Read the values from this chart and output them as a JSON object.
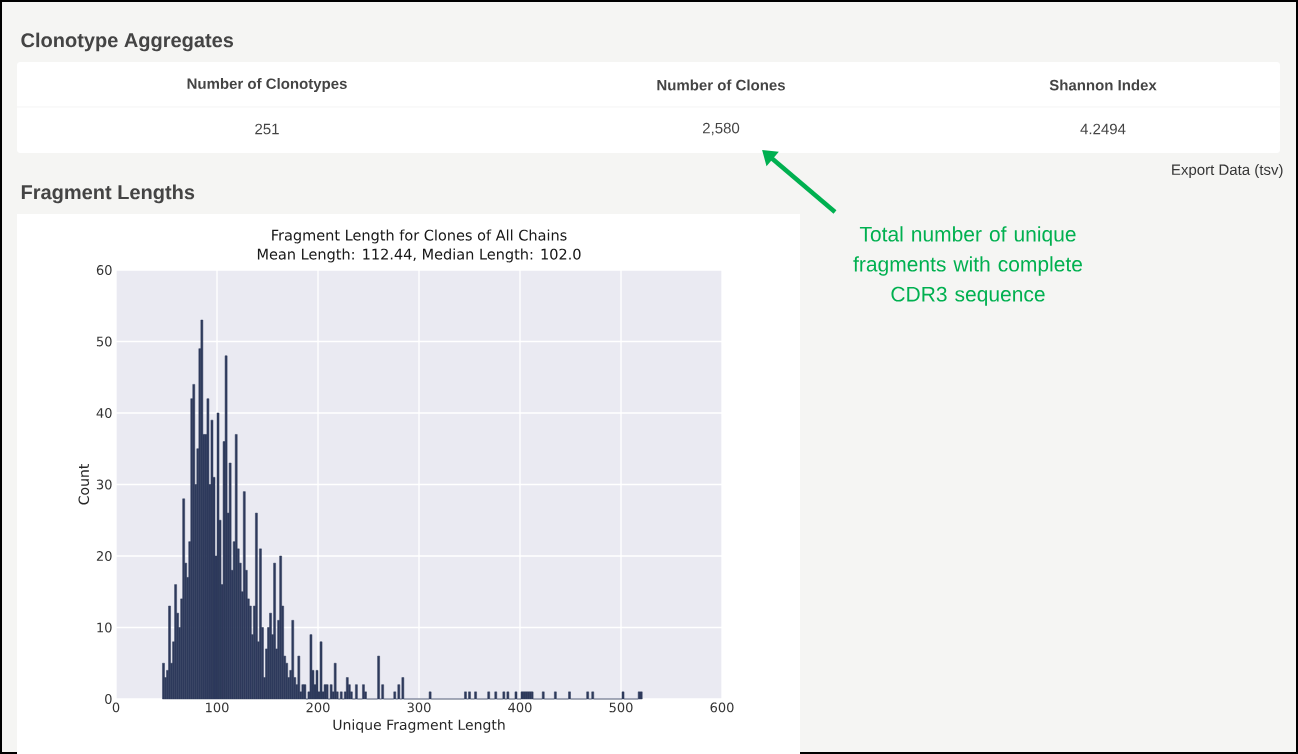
{
  "chart_data": [
    {
      "type": "other",
      "title": "Clonotype Aggregates",
      "annotations": [
        "Number of Clonotypes",
        "Number of Clones",
        "Shannon Index",
        "251",
        "2,580",
        "4.2494",
        "Export Data (tsv)",
        "Total number of unique fragments with complete CDR3 sequence"
      ]
    },
    {
      "type": "histogram",
      "title": "Fragment Length for Clones of All Chains",
      "subtitle": "Mean Length: 112.44, Median Length: 102.0",
      "xlabel": "Unique Fragment Length",
      "ylabel": "Count",
      "annotations": [
        "Fragment Lengths"
      ],
      "bins": [
        46,
        48,
        50,
        52,
        54,
        56,
        58,
        60,
        62,
        64,
        66,
        68,
        70,
        72,
        74,
        76,
        78,
        80,
        82,
        84,
        86,
        88,
        90,
        92,
        94,
        96,
        98,
        100,
        102,
        104,
        106,
        108,
        110,
        112,
        114,
        116,
        118,
        120,
        122,
        124,
        126,
        128,
        130,
        132,
        134,
        136,
        138,
        140,
        142,
        144,
        146,
        148,
        150,
        152,
        154,
        156,
        158,
        160,
        162,
        164,
        166,
        168,
        170,
        172,
        174,
        176,
        178,
        180,
        182,
        184,
        186,
        188,
        190,
        192,
        194,
        196,
        198,
        200,
        202,
        204,
        206,
        208,
        210,
        212,
        214,
        216,
        218,
        220,
        222,
        224,
        226,
        228,
        230,
        232,
        234,
        237,
        239,
        244,
        246,
        248,
        259,
        261,
        263,
        265,
        275,
        277,
        279,
        281,
        283,
        285,
        310,
        312,
        345,
        347,
        349,
        351,
        355,
        357,
        368,
        370,
        375,
        377,
        383,
        385,
        387,
        389,
        395,
        397,
        401,
        403,
        405,
        407,
        409,
        411,
        413,
        422,
        424,
        434,
        436,
        448,
        450,
        466,
        468,
        471,
        473,
        501,
        503,
        517,
        521
      ],
      "values": [
        5,
        3,
        4,
        13,
        5,
        8,
        16,
        12,
        10,
        14,
        28,
        19,
        17,
        22,
        42,
        44,
        30,
        35,
        49,
        53,
        37,
        37,
        42,
        30,
        39,
        31,
        20,
        40,
        25,
        16,
        36,
        48,
        26,
        33,
        18,
        22,
        37,
        21,
        19,
        15,
        29,
        18,
        14,
        13,
        9,
        13,
        26,
        8,
        21,
        10,
        3,
        7,
        10,
        12,
        9,
        19,
        7,
        11,
        20,
        13,
        6,
        5,
        3,
        4,
        11,
        3,
        2,
        6,
        1,
        2,
        2,
        0,
        1,
        9,
        4,
        2,
        4,
        1,
        8,
        1,
        2,
        2,
        0,
        2,
        1,
        5,
        1,
        0,
        1,
        0,
        1,
        3,
        2,
        1,
        0,
        2,
        0,
        2,
        1,
        0,
        6,
        0,
        2,
        0,
        1,
        0,
        2,
        0,
        3,
        0,
        1,
        0,
        1,
        0,
        1,
        0,
        1,
        0,
        1,
        0,
        1,
        0,
        1,
        0,
        1,
        0,
        1,
        0,
        1,
        1,
        1,
        1,
        1,
        1,
        0,
        1,
        0,
        1,
        0,
        1,
        0,
        1,
        0,
        1,
        0,
        1,
        0,
        1
      ],
      "color": "#2e3a5c",
      "xlim": [
        0,
        600
      ],
      "ylim": [
        0,
        60
      ],
      "xticks": [
        0,
        100,
        200,
        300,
        400,
        500,
        600
      ],
      "yticks": [
        0,
        10,
        20,
        30,
        40,
        50,
        60
      ],
      "grid": true
    }
  ]
}
